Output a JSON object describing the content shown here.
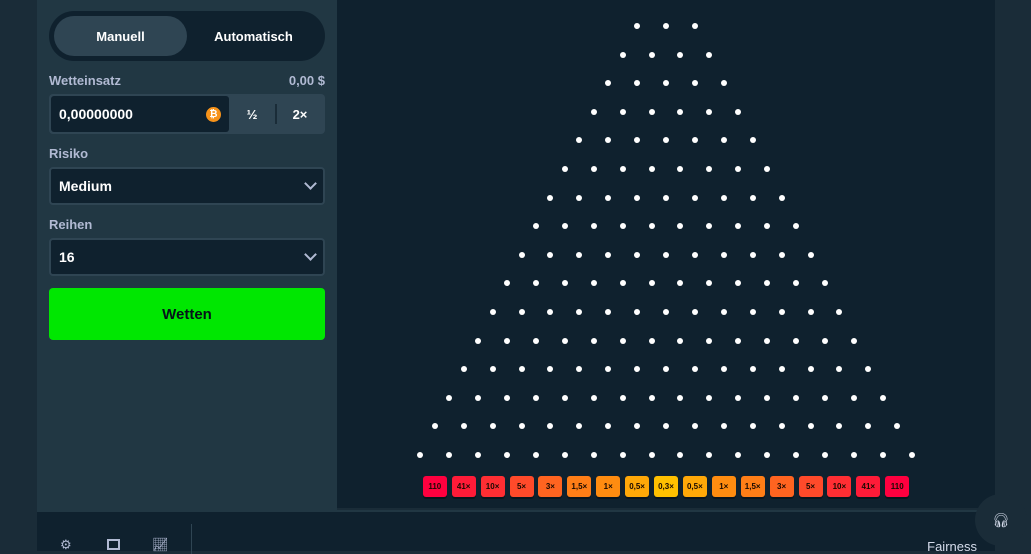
{
  "mode_toggle": {
    "manual": "Manuell",
    "auto": "Automatisch",
    "active": "manual"
  },
  "bet": {
    "label": "Wetteinsatz",
    "usd_value": "0,00 $",
    "amount": "0,00000000",
    "currency_icon": "bitcoin-icon",
    "half": "½",
    "double": "2×"
  },
  "risk": {
    "label": "Risiko",
    "value": "Medium"
  },
  "rows": {
    "label": "Reihen",
    "value": "16"
  },
  "bet_button": "Wetten",
  "board": {
    "rows": 16,
    "multipliers": [
      "110",
      "41×",
      "10×",
      "5×",
      "3×",
      "1,5×",
      "1×",
      "0,5×",
      "0,3×",
      "0,5×",
      "1×",
      "1,5×",
      "3×",
      "5×",
      "10×",
      "41×",
      "110"
    ],
    "colors": [
      "#ff003f",
      "#ff1b38",
      "#ff2e33",
      "#ff4a2a",
      "#ff6420",
      "#ff7e17",
      "#ff8c10",
      "#ffa808",
      "#ffc000",
      "#ffa808",
      "#ff8c10",
      "#ff7e17",
      "#ff6420",
      "#ff4a2a",
      "#ff2e33",
      "#ff1b38",
      "#ff003f"
    ]
  },
  "footer": {
    "icons": [
      "gear-icon",
      "square-icon",
      "stats-icon"
    ],
    "fairness": "Fairness",
    "support_icon": "headset-icon"
  }
}
